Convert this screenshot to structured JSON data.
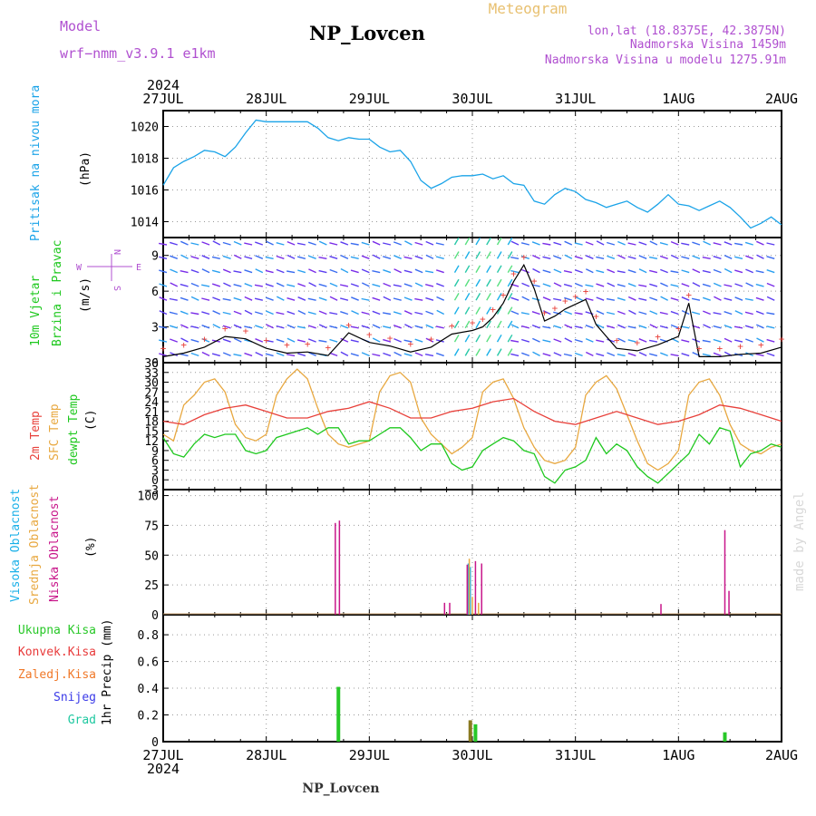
{
  "header": {
    "model_label": "Model",
    "model_name": "wrf−nmm_v3.9.1 e1km",
    "title": "NP_Lovcen",
    "meteogram": "Meteogram",
    "lonlat": "lon,lat (18.8375E, 42.3875N)",
    "elevation": "Nadmorska Visina 1459m",
    "model_elevation": "Nadmorska Visina u modelu 1275.91m",
    "footer_title": "NP_Lovcen",
    "watermark": "made by Angel"
  },
  "time_axis": {
    "year": "2024",
    "ticks": [
      "27JUL",
      "28JUL",
      "29JUL",
      "30JUL",
      "31JUL",
      "1AUG",
      "2AUG"
    ]
  },
  "colors": {
    "pressure": "#1aa3e8",
    "temp2m": "#e8403a",
    "sfc_temp": "#e8a840",
    "dewpt": "#1ec81e",
    "high_cloud": "#1ab0e8",
    "mid_cloud": "#e8a840",
    "low_cloud": "#c8168a",
    "total_rain": "#28c828",
    "conv_rain": "#e83a3a",
    "frozen": "#f07828",
    "snow": "#3a3ae8",
    "hail": "#1ec8a0",
    "model": "#b050d0",
    "meteogram": "#e8c070"
  },
  "panels": {
    "pressure": {
      "label": "Pritisak na nivou mora",
      "unit": "(hPa)",
      "yticks": [
        "1014",
        "1016",
        "1018",
        "1020"
      ]
    },
    "wind": {
      "label1": "10m Vjetar",
      "label2": "Brzina i Pravac",
      "unit": "(m/s)",
      "compass": {
        "n": "N",
        "w": "W",
        "e": "E",
        "s": "S"
      },
      "yticks": [
        "0",
        "3",
        "6",
        "9"
      ]
    },
    "temp": {
      "label_2m": "2m Temp",
      "label_sfc": "SFC Temp",
      "label_dew": "dewpt Temp",
      "unit": "(C)",
      "yticks": [
        "−3",
        "0",
        "3",
        "6",
        "9",
        "12",
        "15",
        "18",
        "21",
        "24",
        "27",
        "30",
        "33",
        "36"
      ]
    },
    "cloud": {
      "label_high": "Visoka Oblacnost",
      "label_mid": "Srednja Oblacnost",
      "label_low": "Niska Oblacnost",
      "unit": "(%)",
      "yticks": [
        "0",
        "25",
        "50",
        "75",
        "100"
      ]
    },
    "precip": {
      "label_total": "Ukupna Kisa",
      "label_conv": "Konvek.Kisa",
      "label_frozen": "Zaledj.Kisa",
      "label_snow": "Snijeg",
      "label_hail": "Grad",
      "unit": "1hr Precip (mm)",
      "yticks": [
        "0",
        "0.2",
        "0.4",
        "0.6",
        "0.8"
      ]
    }
  },
  "chart_data": [
    {
      "type": "line",
      "title": "Pritisak na nivou mora",
      "ylabel": "(hPa)",
      "x_unit": "days from 27JUL 00 UTC",
      "ylim": [
        1013,
        1021
      ],
      "series": [
        {
          "x": [
            0,
            0.1,
            0.2,
            0.3,
            0.4,
            0.5,
            0.6,
            0.7,
            0.8,
            0.9,
            1.0,
            1.1,
            1.2,
            1.3,
            1.4,
            1.5,
            1.6,
            1.7,
            1.8,
            1.9,
            2.0,
            2.1,
            2.2,
            2.3,
            2.4,
            2.5,
            2.6,
            2.7,
            2.8,
            2.9,
            3.0,
            3.1,
            3.2,
            3.3,
            3.4,
            3.5,
            3.6,
            3.7,
            3.8,
            3.9,
            4.0,
            4.1,
            4.2,
            4.3,
            4.4,
            4.5,
            4.6,
            4.7,
            4.8,
            4.9,
            5.0,
            5.1,
            5.2,
            5.3,
            5.4,
            5.5,
            5.6,
            5.7,
            5.8,
            5.9,
            6.0
          ],
          "y": [
            1016.3,
            1017.4,
            1017.8,
            1018.1,
            1018.5,
            1018.4,
            1018.1,
            1018.7,
            1019.6,
            1020.4,
            1020.3,
            1020.3,
            1020.3,
            1020.3,
            1020.3,
            1019.9,
            1019.3,
            1019.1,
            1019.3,
            1019.2,
            1019.2,
            1018.7,
            1018.4,
            1018.5,
            1017.8,
            1016.6,
            1016.1,
            1016.4,
            1016.8,
            1016.9,
            1016.9,
            1017.0,
            1016.7,
            1016.9,
            1016.4,
            1016.3,
            1015.3,
            1015.1,
            1015.7,
            1016.1,
            1015.9,
            1015.4,
            1015.2,
            1014.9,
            1015.1,
            1015.3,
            1014.9,
            1014.6,
            1015.1,
            1015.7,
            1015.1,
            1015.0,
            1014.7,
            1015.0,
            1015.3,
            1014.9,
            1014.3,
            1013.6,
            1013.9,
            1014.3,
            1013.8
          ]
        }
      ]
    },
    {
      "type": "line",
      "title": "10m Vjetar Brzina i Pravac",
      "ylabel": "(m/s)",
      "x_unit": "days from 27JUL 00 UTC",
      "ylim": [
        0,
        10.5
      ],
      "series": [
        {
          "name": "speed",
          "x": [
            0,
            0.2,
            0.4,
            0.6,
            0.8,
            1.0,
            1.2,
            1.4,
            1.6,
            1.8,
            2.0,
            2.2,
            2.4,
            2.6,
            2.8,
            3.0,
            3.1,
            3.2,
            3.3,
            3.4,
            3.5,
            3.6,
            3.7,
            3.8,
            3.9,
            4.0,
            4.1,
            4.2,
            4.4,
            4.6,
            4.8,
            5.0,
            5.1,
            5.2,
            5.4,
            5.6,
            5.8,
            6.0
          ],
          "y": [
            0.5,
            0.8,
            1.3,
            2.2,
            2.0,
            1.2,
            0.8,
            0.9,
            0.6,
            2.5,
            1.7,
            1.4,
            0.9,
            1.3,
            2.4,
            2.7,
            3.0,
            3.8,
            5.0,
            6.8,
            8.2,
            6.2,
            3.5,
            3.9,
            4.5,
            4.9,
            5.3,
            3.2,
            1.2,
            1.0,
            1.5,
            2.2,
            5.0,
            0.5,
            0.5,
            0.7,
            0.8,
            1.3
          ]
        }
      ]
    },
    {
      "type": "line",
      "title": "Temperature",
      "ylabel": "(C)",
      "x_unit": "days from 27JUL 00 UTC",
      "ylim": [
        -3,
        36
      ],
      "series": [
        {
          "name": "2m Temp",
          "x": [
            0,
            0.2,
            0.4,
            0.6,
            0.8,
            1.0,
            1.2,
            1.4,
            1.6,
            1.8,
            2.0,
            2.2,
            2.4,
            2.6,
            2.8,
            3.0,
            3.2,
            3.4,
            3.6,
            3.8,
            4.0,
            4.2,
            4.4,
            4.6,
            4.8,
            5.0,
            5.2,
            5.4,
            5.6,
            5.8,
            6.0
          ],
          "y": [
            18,
            17,
            20,
            22,
            23,
            21,
            19,
            19,
            21,
            22,
            24,
            22,
            19,
            19,
            21,
            22,
            24,
            25,
            21,
            18,
            17,
            19,
            21,
            19,
            17,
            18,
            20,
            23,
            22,
            20,
            18
          ]
        },
        {
          "name": "SFC Temp",
          "x": [
            0,
            0.1,
            0.2,
            0.3,
            0.4,
            0.5,
            0.6,
            0.7,
            0.8,
            0.9,
            1.0,
            1.1,
            1.2,
            1.3,
            1.4,
            1.5,
            1.6,
            1.7,
            1.8,
            1.9,
            2.0,
            2.1,
            2.2,
            2.3,
            2.4,
            2.5,
            2.6,
            2.7,
            2.8,
            2.9,
            3.0,
            3.1,
            3.2,
            3.3,
            3.4,
            3.5,
            3.6,
            3.7,
            3.8,
            3.9,
            4.0,
            4.1,
            4.2,
            4.3,
            4.4,
            4.5,
            4.6,
            4.7,
            4.8,
            4.9,
            5.0,
            5.1,
            5.2,
            5.3,
            5.4,
            5.5,
            5.6,
            5.7,
            5.8,
            5.9,
            6.0
          ],
          "y": [
            14,
            12,
            23,
            26,
            30,
            31,
            27,
            17,
            13,
            12,
            14,
            26,
            31,
            34,
            31,
            22,
            14,
            11,
            10,
            11,
            12,
            27,
            32,
            33,
            30,
            19,
            14,
            11,
            8,
            10,
            13,
            27,
            30,
            31,
            25,
            16,
            10,
            6,
            5,
            6,
            10,
            26,
            30,
            32,
            28,
            20,
            12,
            5,
            3,
            5,
            9,
            26,
            30,
            31,
            26,
            17,
            11,
            9,
            8,
            10,
            11
          ]
        },
        {
          "name": "dewpt Temp",
          "x": [
            0,
            0.1,
            0.2,
            0.3,
            0.4,
            0.5,
            0.6,
            0.7,
            0.8,
            0.9,
            1.0,
            1.1,
            1.2,
            1.3,
            1.4,
            1.5,
            1.6,
            1.7,
            1.8,
            1.9,
            2.0,
            2.1,
            2.2,
            2.3,
            2.4,
            2.5,
            2.6,
            2.7,
            2.8,
            2.9,
            3.0,
            3.1,
            3.2,
            3.3,
            3.4,
            3.5,
            3.6,
            3.7,
            3.8,
            3.9,
            4.0,
            4.1,
            4.2,
            4.3,
            4.4,
            4.5,
            4.6,
            4.7,
            4.8,
            4.9,
            5.0,
            5.1,
            5.2,
            5.3,
            5.4,
            5.5,
            5.6,
            5.7,
            5.8,
            5.9,
            6.0
          ],
          "y": [
            13,
            8,
            7,
            11,
            14,
            13,
            14,
            14,
            9,
            8,
            9,
            13,
            14,
            15,
            16,
            14,
            16,
            16,
            11,
            12,
            12,
            14,
            16,
            16,
            13,
            9,
            11,
            11,
            5,
            3,
            4,
            9,
            11,
            13,
            12,
            9,
            8,
            1,
            -1,
            3,
            4,
            6,
            13,
            8,
            11,
            9,
            4,
            1,
            -1,
            2,
            5,
            8,
            14,
            11,
            16,
            15,
            4,
            8,
            9,
            11,
            10
          ]
        }
      ]
    },
    {
      "type": "bar",
      "title": "Oblacnost",
      "ylabel": "(%)",
      "x_unit": "days from 27JUL 00 UTC",
      "ylim": [
        0,
        105
      ],
      "series": [
        {
          "name": "Visoka Oblacnost",
          "x": [
            2.96,
            2.98
          ],
          "values": [
            43,
            40
          ]
        },
        {
          "name": "Srednja Oblacnost",
          "x": [
            2.97,
            3.0,
            3.06
          ],
          "values": [
            47,
            15,
            10
          ]
        },
        {
          "name": "Niska Oblacnost",
          "x": [
            1.67,
            1.71,
            2.73,
            2.78,
            2.95,
            3.03,
            3.09,
            4.83,
            5.45,
            5.49
          ],
          "values": [
            77,
            79,
            10,
            10,
            42,
            45,
            43,
            9,
            71,
            20
          ]
        }
      ]
    },
    {
      "type": "bar",
      "title": "1hr Precip",
      "ylabel": "1hr Precip (mm)",
      "x_unit": "days from 27JUL 00 UTC",
      "ylim": [
        0,
        0.95
      ],
      "series": [
        {
          "name": "Ukupna Kisa",
          "x": [
            1.7,
            3.03,
            5.45
          ],
          "values": [
            0.41,
            0.13,
            0.07
          ]
        },
        {
          "name": "Zaledj.Kisa",
          "x": [
            2.98
          ],
          "values": [
            0.16
          ]
        }
      ]
    }
  ]
}
